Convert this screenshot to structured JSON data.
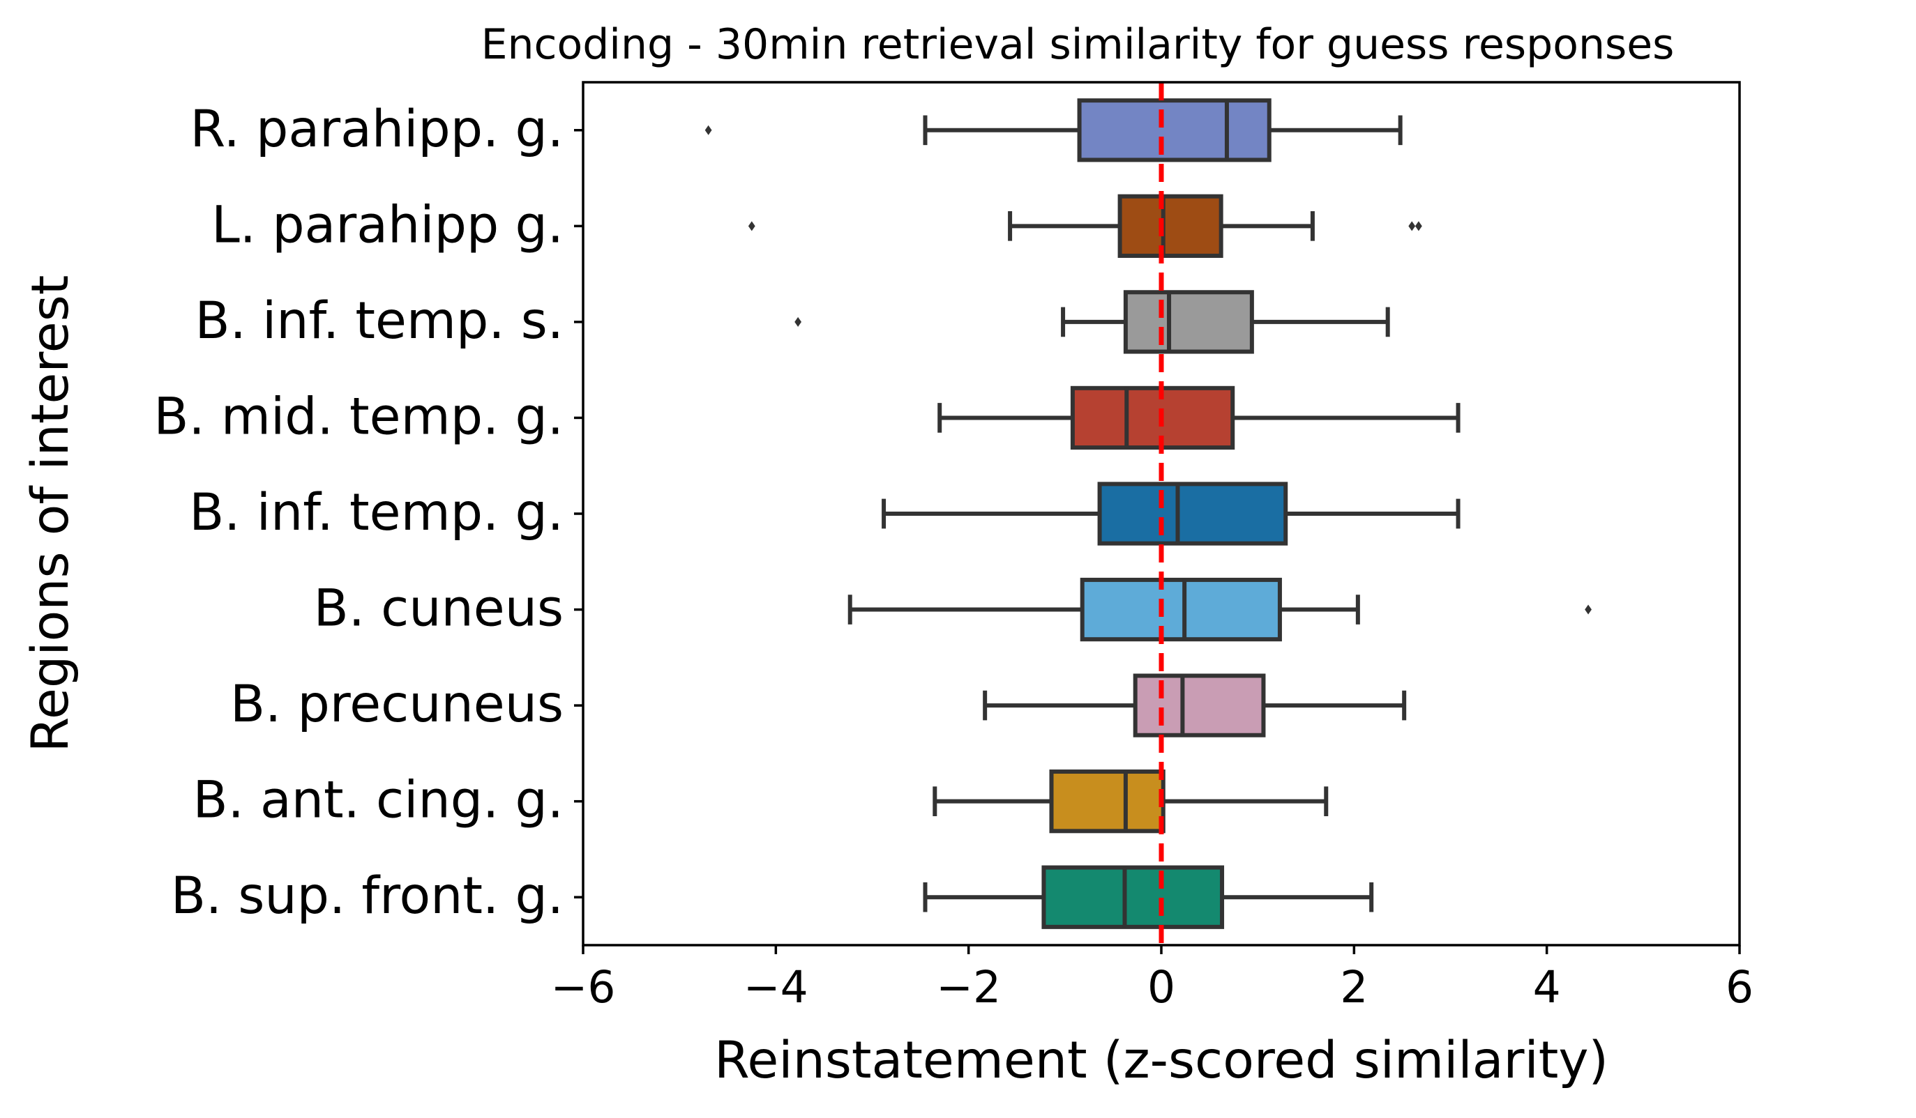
{
  "chart_data": {
    "type": "boxplot",
    "orientation": "horizontal",
    "title": "Encoding - 30min retrieval similarity for guess responses",
    "xlabel": "Reinstatement (z-scored similarity)",
    "ylabel": "Regions of interest",
    "xlim": [
      -6,
      6
    ],
    "xticks": [
      -6,
      -4,
      -2,
      0,
      2,
      4,
      6
    ],
    "xtick_labels": [
      "−6",
      "−4",
      "−2",
      "0",
      "2",
      "4",
      "6"
    ],
    "grid": false,
    "reference_line": {
      "x": 0,
      "color": "#ff0000",
      "style": "dashed"
    },
    "series": [
      {
        "category": "R. parahipp. g.",
        "whisker_low": -2.45,
        "q1": -0.85,
        "median": 0.68,
        "q3": 1.12,
        "whisker_high": 2.48,
        "outliers": [
          -4.7
        ],
        "color": "#7385c4"
      },
      {
        "category": "L. parahipp g.",
        "whisker_low": -1.57,
        "q1": -0.43,
        "median": 0.02,
        "q3": 0.62,
        "whisker_high": 1.57,
        "outliers": [
          -4.25,
          2.6,
          2.67
        ],
        "color": "#9e4c14"
      },
      {
        "category": "B. inf. temp. s.",
        "whisker_low": -1.02,
        "q1": -0.37,
        "median": 0.08,
        "q3": 0.94,
        "whisker_high": 2.35,
        "outliers": [
          -3.77
        ],
        "color": "#9a9a9a"
      },
      {
        "category": "B. mid. temp. g.",
        "whisker_low": -2.3,
        "q1": -0.92,
        "median": -0.36,
        "q3": 0.74,
        "whisker_high": 3.08,
        "outliers": [],
        "color": "#b64131"
      },
      {
        "category": "B. inf. temp. g.",
        "whisker_low": -2.88,
        "q1": -0.64,
        "median": 0.17,
        "q3": 1.29,
        "whisker_high": 3.08,
        "outliers": [],
        "color": "#1a6ea3"
      },
      {
        "category": "B. cuneus",
        "whisker_low": -3.23,
        "q1": -0.82,
        "median": 0.24,
        "q3": 1.23,
        "whisker_high": 2.04,
        "outliers": [
          4.43
        ],
        "color": "#5eabd8"
      },
      {
        "category": "B. precuneus",
        "whisker_low": -1.83,
        "q1": -0.27,
        "median": 0.22,
        "q3": 1.06,
        "whisker_high": 2.52,
        "outliers": [],
        "color": "#c99db4"
      },
      {
        "category": "B. ant. cing. g.",
        "whisker_low": -2.35,
        "q1": -1.14,
        "median": -0.37,
        "q3": 0.02,
        "whisker_high": 1.71,
        "outliers": [],
        "color": "#c88e1e"
      },
      {
        "category": "B. sup. front. g.",
        "whisker_low": -2.45,
        "q1": -1.22,
        "median": -0.38,
        "q3": 0.63,
        "whisker_high": 2.18,
        "outliers": [],
        "color": "#14896f"
      }
    ]
  }
}
